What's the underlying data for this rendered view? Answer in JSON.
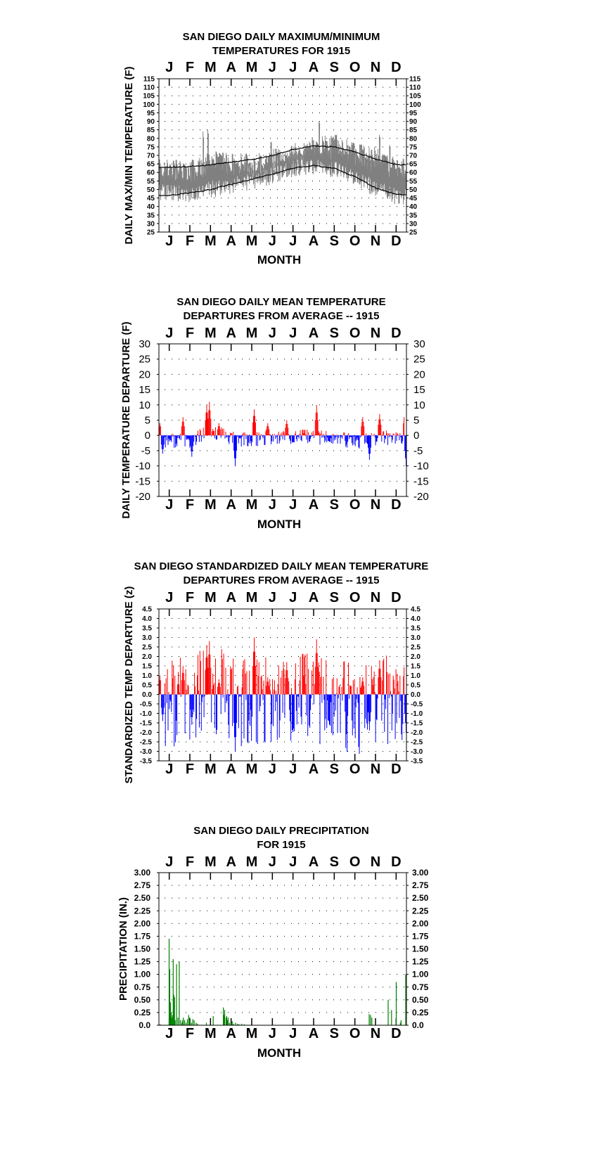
{
  "chart_data": [
    {
      "type": "line",
      "title_lines": [
        "SAN DIEGO DAILY MAXIMUM/MINIMUM",
        "TEMPERATURES FOR 1915"
      ],
      "xlabel": "MONTH",
      "ylabel": "DAILY MAX/MIN TEMPERATURE (F)",
      "months": [
        "J",
        "F",
        "M",
        "A",
        "M",
        "J",
        "J",
        "A",
        "S",
        "O",
        "N",
        "D"
      ],
      "ylim": [
        25,
        115
      ],
      "yticks": [
        "115",
        "110",
        "105",
        "100",
        "95",
        "90",
        "85",
        "80",
        "75",
        "70",
        "65",
        "60",
        "55",
        "50",
        "45",
        "40",
        "35",
        "30",
        "25"
      ],
      "grid": true,
      "series_colors": {
        "observed": "#808080",
        "normals": "#000000"
      },
      "normal_high_monthly": [
        63,
        63.5,
        64.5,
        66,
        67.5,
        70,
        73.5,
        75.5,
        75,
        72,
        68,
        64.5
      ],
      "normal_low_monthly": [
        46.5,
        48,
        50,
        53,
        56,
        59,
        62.5,
        64,
        62.5,
        57.5,
        51,
        47
      ],
      "obs_high_monthly": [
        62,
        61,
        67,
        66,
        65,
        68,
        71,
        75,
        77,
        71,
        69,
        63
      ],
      "obs_low_monthly": [
        48,
        47,
        50,
        52,
        55,
        58,
        62,
        64,
        62,
        57,
        50,
        46
      ],
      "spikes": [
        {
          "day": 65,
          "high": 84
        },
        {
          "day": 72,
          "high": 85
        },
        {
          "day": 165,
          "high": 78
        },
        {
          "day": 236,
          "high": 90
        },
        {
          "day": 325,
          "high": 82
        },
        {
          "day": 340,
          "high": 76
        }
      ]
    },
    {
      "type": "bar",
      "title_lines": [
        "SAN DIEGO DAILY MEAN TEMPERATURE",
        "DEPARTURES FROM AVERAGE -- 1915"
      ],
      "xlabel": "MONTH",
      "ylabel": "DAILY TEMPERATURE DEPARTURE (F)",
      "months": [
        "J",
        "F",
        "M",
        "A",
        "M",
        "J",
        "J",
        "A",
        "S",
        "O",
        "N",
        "D"
      ],
      "ylim": [
        -20,
        30
      ],
      "yticks": [
        "30",
        "25",
        "20",
        "15",
        "10",
        "5",
        "0",
        "-5",
        "-10",
        "-15",
        "-20"
      ],
      "grid": true,
      "colors": {
        "positive": "#ff0000",
        "negative": "#0000ff"
      },
      "monthly_mean_departure": [
        -1.5,
        -2,
        1.5,
        -1,
        -1.5,
        -0.5,
        -0.5,
        -0.5,
        -1,
        -2,
        -1,
        -0.5
      ],
      "peaks": [
        {
          "day": 1,
          "value": 4
        },
        {
          "day": 5,
          "value": -6
        },
        {
          "day": 35,
          "value": 6
        },
        {
          "day": 48,
          "value": -7
        },
        {
          "day": 70,
          "value": 10
        },
        {
          "day": 74,
          "value": 11
        },
        {
          "day": 88,
          "value": 4
        },
        {
          "day": 112,
          "value": -10
        },
        {
          "day": 140,
          "value": 8.5
        },
        {
          "day": 160,
          "value": 4
        },
        {
          "day": 188,
          "value": 5
        },
        {
          "day": 232,
          "value": 10
        },
        {
          "day": 300,
          "value": 6
        },
        {
          "day": 310,
          "value": -8
        },
        {
          "day": 325,
          "value": 7
        },
        {
          "day": 362,
          "value": 8
        },
        {
          "day": 364,
          "value": -10
        }
      ]
    },
    {
      "type": "bar",
      "title_lines": [
        "SAN DIEGO STANDARDIZED DAILY MEAN TEMPERATURE",
        "DEPARTURES FROM AVERAGE -- 1915"
      ],
      "xlabel": "",
      "ylabel": "STANDARDIZED TEMP DEPARTURE (z)",
      "months": [
        "J",
        "F",
        "M",
        "A",
        "M",
        "J",
        "J",
        "A",
        "S",
        "O",
        "N",
        "D"
      ],
      "ylim": [
        -3.5,
        4.5
      ],
      "yticks": [
        "4.5",
        "4.0",
        "3.5",
        "3.0",
        "2.5",
        "2.0",
        "1.5",
        "1.0",
        "0.5",
        "0.0",
        "-0.5",
        "-1.0",
        "-1.5",
        "-2.0",
        "-2.5",
        "-3.0",
        "-3.5"
      ],
      "grid": true,
      "colors": {
        "positive": "#ff0000",
        "negative": "#0000ff"
      },
      "monthly_mean_departure": [
        -0.3,
        -0.4,
        0.3,
        -0.3,
        -0.5,
        -0.2,
        -0.2,
        -0.2,
        -0.5,
        -0.8,
        -0.3,
        -0.2
      ],
      "peaks": [
        {
          "day": 1,
          "value": 1.0
        },
        {
          "day": 5,
          "value": -1.4
        },
        {
          "day": 35,
          "value": 1.5
        },
        {
          "day": 48,
          "value": -1.6
        },
        {
          "day": 70,
          "value": 2.6
        },
        {
          "day": 74,
          "value": 2.8
        },
        {
          "day": 88,
          "value": 0.8
        },
        {
          "day": 112,
          "value": -3.0
        },
        {
          "day": 140,
          "value": 3.0
        },
        {
          "day": 160,
          "value": 0.9
        },
        {
          "day": 188,
          "value": 1.7
        },
        {
          "day": 232,
          "value": 2.9
        },
        {
          "day": 300,
          "value": 0.9
        },
        {
          "day": 310,
          "value": -1.9
        },
        {
          "day": 325,
          "value": 1.8
        },
        {
          "day": 362,
          "value": 1.9
        },
        {
          "day": 364,
          "value": -2.0
        }
      ]
    },
    {
      "type": "bar",
      "title_lines": [
        "SAN DIEGO DAILY PRECIPITATION",
        "FOR 1915"
      ],
      "xlabel": "MONTH",
      "ylabel": "PRECIPITATION (IN.)",
      "months": [
        "J",
        "F",
        "M",
        "A",
        "M",
        "J",
        "J",
        "A",
        "S",
        "O",
        "N",
        "D"
      ],
      "ylim": [
        0,
        3
      ],
      "yticks": [
        "3.00",
        "2.75",
        "2.50",
        "2.25",
        "2.00",
        "1.75",
        "1.50",
        "1.25",
        "1.00",
        "0.75",
        "0.50",
        "0.25",
        "0.0"
      ],
      "grid": true,
      "colors": {
        "bars": "#008000"
      },
      "days": [
        2,
        15,
        16,
        17,
        18,
        19,
        20,
        21,
        22,
        23,
        24,
        26,
        28,
        30,
        32,
        34,
        35,
        36,
        38,
        40,
        42,
        44,
        45,
        46,
        48,
        50,
        52,
        55,
        57,
        70,
        80,
        95,
        96,
        97,
        99,
        100,
        101,
        102,
        104,
        106,
        108,
        110,
        113,
        116,
        118,
        122,
        126,
        310,
        312,
        314,
        338,
        343,
        350,
        356,
        357,
        364
      ],
      "values": [
        0.02,
        1.7,
        1.1,
        0.45,
        0.25,
        0.15,
        0.2,
        1.3,
        0.6,
        0.55,
        0.1,
        1.2,
        0.15,
        1.25,
        0.1,
        0.05,
        0.1,
        0.15,
        0.1,
        0.05,
        0.12,
        0.2,
        0.15,
        0.1,
        0.05,
        0.12,
        0.1,
        0.05,
        0.03,
        0.05,
        0.18,
        0.35,
        0.2,
        0.3,
        0.15,
        0.18,
        0.1,
        0.15,
        0.05,
        0.05,
        0.08,
        0.03,
        0.05,
        0.03,
        0.02,
        0.03,
        0.02,
        0.22,
        0.2,
        0.15,
        0.5,
        0.3,
        0.85,
        0.05,
        0.1,
        1.0
      ]
    }
  ]
}
